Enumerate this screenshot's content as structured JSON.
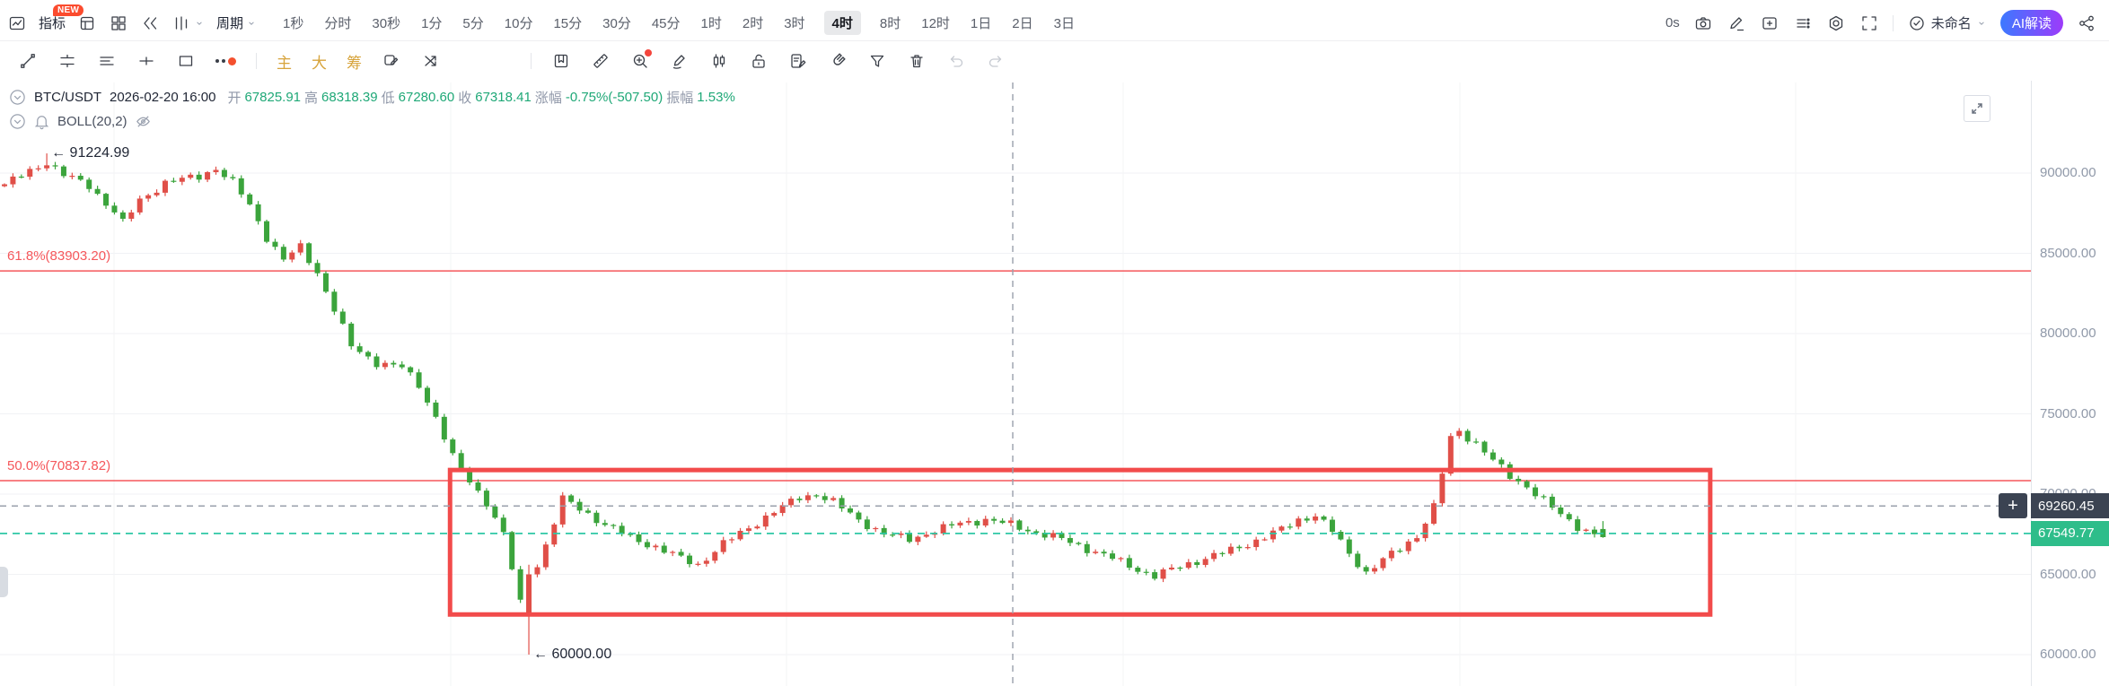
{
  "toolbar_top": {
    "indicators_label": "指标",
    "new_badge": "NEW",
    "period_label": "周期",
    "timeframes": [
      "1秒",
      "分时",
      "30秒",
      "1分",
      "5分",
      "10分",
      "15分",
      "30分",
      "45分",
      "1时",
      "2时",
      "3时",
      "4时",
      "8时",
      "12时",
      "1日",
      "2日",
      "3日"
    ],
    "active_timeframe": "4时",
    "countdown": "0s",
    "layout_name": "未命名",
    "ai_button": "AI解读"
  },
  "drawing_toolbar": {
    "main_label": "主",
    "large_label": "大",
    "chips_label": "筹"
  },
  "symbol_bar": {
    "symbol": "BTC/USDT",
    "datetime": "2026-02-20 16:00",
    "fields": [
      {
        "label": "开",
        "value": "67825.91"
      },
      {
        "label": "高",
        "value": "68318.39"
      },
      {
        "label": "低",
        "value": "67280.60"
      },
      {
        "label": "收",
        "value": "67318.41"
      },
      {
        "label": "涨幅",
        "value": "-0.75%(-507.50)"
      },
      {
        "label": "振幅",
        "value": "1.53%"
      }
    ],
    "indicator": "BOLL(20,2)"
  },
  "price_axis": {
    "labels": [
      "90000.00",
      "85000.00",
      "80000.00",
      "75000.00",
      "70000.00",
      "65000.00",
      "60000.00"
    ]
  },
  "price_tags": {
    "crosshair_price": "69260.45",
    "last_price": "67549.77",
    "crosshair_bg": "#3B4352",
    "last_bg": "#2EBD8A",
    "plus_label": "+"
  },
  "chart_data": {
    "type": "candlestick",
    "symbol": "BTC/USDT",
    "timeframe": "4时",
    "indicator": "BOLL(20,2)",
    "y_axis_labels": [
      90000,
      85000,
      80000,
      75000,
      70000,
      65000,
      60000
    ],
    "high_annotation": {
      "text": "← 91224.99",
      "price": 91224.99,
      "candle_index": 5
    },
    "low_annotation": {
      "text": "← 60000.00",
      "price": 60000.0,
      "candle_index": 62
    },
    "fib_levels": [
      {
        "label": "61.8%(83903.20)",
        "price": 83903.2
      },
      {
        "label": "50.0%(70837.82)",
        "price": 70837.82
      }
    ],
    "crosshair": {
      "price": 69260.45
    },
    "last_price": 67549.77,
    "last_candle": {
      "open": 67825.91,
      "high": 68318.39,
      "low": 67280.6,
      "close": 67318.41
    },
    "colors": {
      "up": "#E04F48",
      "down": "#3BA43C",
      "fib": "#F5575B",
      "rect": "#F24B4B",
      "last_dash": "#2EC7A5",
      "crosshair_dash": "#9AA0AC"
    },
    "highlight_rect": {
      "x1_candle": 53,
      "x2_candle": 202,
      "top_price": 71500,
      "bottom_price": 62500
    },
    "candle_count": 190,
    "trend_keyframes": [
      [
        0,
        89300
      ],
      [
        3,
        90100
      ],
      [
        5,
        90700
      ],
      [
        7,
        89900
      ],
      [
        10,
        89200
      ],
      [
        13,
        87600
      ],
      [
        14,
        86900
      ],
      [
        16,
        88300
      ],
      [
        19,
        89400
      ],
      [
        23,
        89800
      ],
      [
        25,
        90300
      ],
      [
        27,
        89400
      ],
      [
        29,
        88000
      ],
      [
        31,
        86000
      ],
      [
        33,
        84600
      ],
      [
        35,
        85400
      ],
      [
        37,
        83800
      ],
      [
        39,
        81500
      ],
      [
        41,
        79200
      ],
      [
        44,
        78200
      ],
      [
        47,
        77900
      ],
      [
        49,
        76800
      ],
      [
        51,
        74800
      ],
      [
        53,
        72300
      ],
      [
        55,
        70800
      ],
      [
        57,
        69500
      ],
      [
        59,
        67500
      ],
      [
        61,
        63200
      ],
      [
        64,
        66800
      ],
      [
        66,
        69700
      ],
      [
        68,
        69100
      ],
      [
        71,
        68100
      ],
      [
        74,
        67300
      ],
      [
        77,
        66700
      ],
      [
        80,
        66000
      ],
      [
        82,
        65600
      ],
      [
        85,
        66900
      ],
      [
        88,
        67900
      ],
      [
        91,
        68900
      ],
      [
        94,
        69800
      ],
      [
        96,
        70000
      ],
      [
        98,
        69500
      ],
      [
        101,
        68400
      ],
      [
        104,
        67500
      ],
      [
        107,
        67200
      ],
      [
        110,
        67700
      ],
      [
        113,
        68200
      ],
      [
        116,
        68400
      ],
      [
        119,
        68100
      ],
      [
        122,
        67600
      ],
      [
        125,
        67200
      ],
      [
        128,
        66600
      ],
      [
        131,
        66000
      ],
      [
        134,
        65300
      ],
      [
        136,
        64900
      ],
      [
        139,
        65500
      ],
      [
        142,
        66000
      ],
      [
        145,
        66500
      ],
      [
        148,
        67100
      ],
      [
        151,
        67800
      ],
      [
        153,
        68400
      ],
      [
        155,
        68700
      ],
      [
        157,
        67700
      ],
      [
        159,
        66300
      ],
      [
        161,
        65100
      ],
      [
        163,
        65900
      ],
      [
        165,
        66600
      ],
      [
        167,
        67400
      ],
      [
        169,
        69200
      ],
      [
        170,
        71300
      ],
      [
        171,
        73500
      ],
      [
        172,
        73900
      ],
      [
        174,
        73200
      ],
      [
        176,
        72100
      ],
      [
        178,
        71100
      ],
      [
        180,
        70500
      ],
      [
        182,
        69600
      ],
      [
        184,
        68700
      ],
      [
        186,
        68000
      ],
      [
        188,
        67500
      ],
      [
        189,
        67318
      ]
    ],
    "overrides": {
      "5": {
        "high": 91224.99
      },
      "62": {
        "open": 62400,
        "close": 65000,
        "low": 60000,
        "high": 65600
      },
      "189": {
        "open": 67825.91,
        "high": 68318.39,
        "low": 67280.6,
        "close": 67318.41
      }
    }
  }
}
